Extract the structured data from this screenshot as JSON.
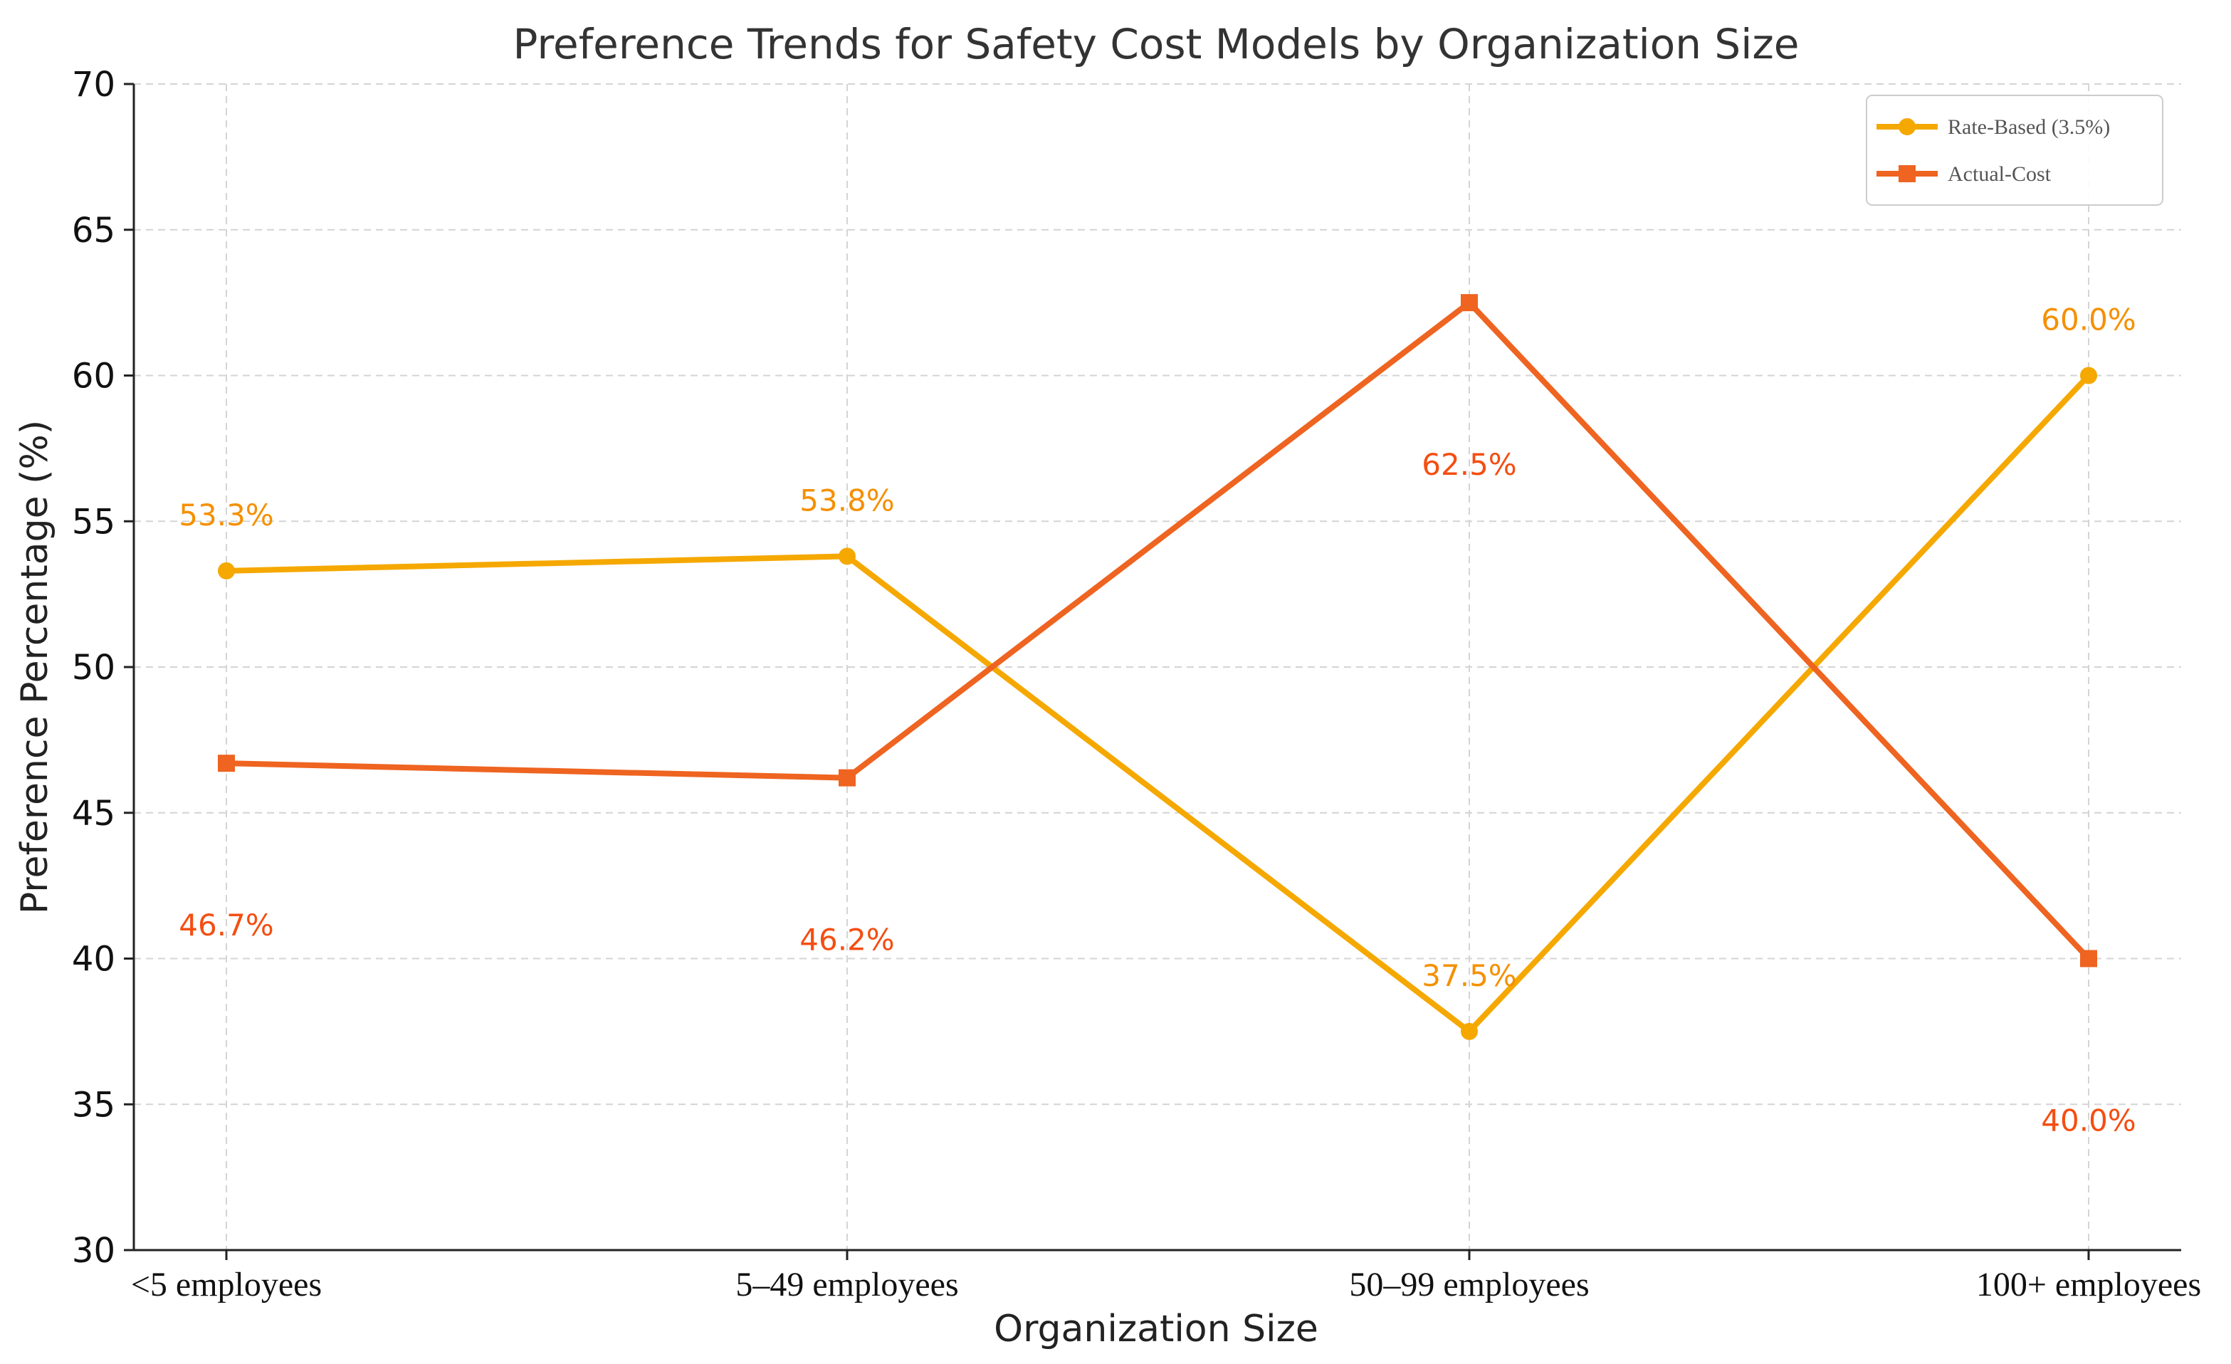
{
  "chart_data": {
    "type": "line",
    "title": "Preference Trends for Safety Cost Models by Organization Size",
    "xlabel": "Organization Size",
    "ylabel": "Preference Percentage (%)",
    "categories": [
      "<5 employees",
      "5–49 employees",
      "50–99 employees",
      "100+ employees"
    ],
    "ylim": [
      30,
      70
    ],
    "yticks": [
      30,
      35,
      40,
      45,
      50,
      55,
      60,
      65,
      70
    ],
    "grid": true,
    "legend_position": "top-right",
    "series": [
      {
        "name": "Rate-Based (3.5%)",
        "color": "#F5A800",
        "label_color": "#F59000",
        "marker": "circle",
        "values": [
          53.3,
          53.8,
          37.5,
          60.0
        ],
        "data_labels": [
          "53.3%",
          "53.8%",
          "37.5%",
          "60.0%"
        ],
        "label_position": "above"
      },
      {
        "name": "Actual-Cost",
        "color": "#EE6420",
        "label_color": "#F44E12",
        "marker": "square",
        "values": [
          46.7,
          46.2,
          62.5,
          40.0
        ],
        "data_labels": [
          "46.7%",
          "46.2%",
          "62.5%",
          "40.0%"
        ],
        "label_position": "below"
      }
    ]
  }
}
